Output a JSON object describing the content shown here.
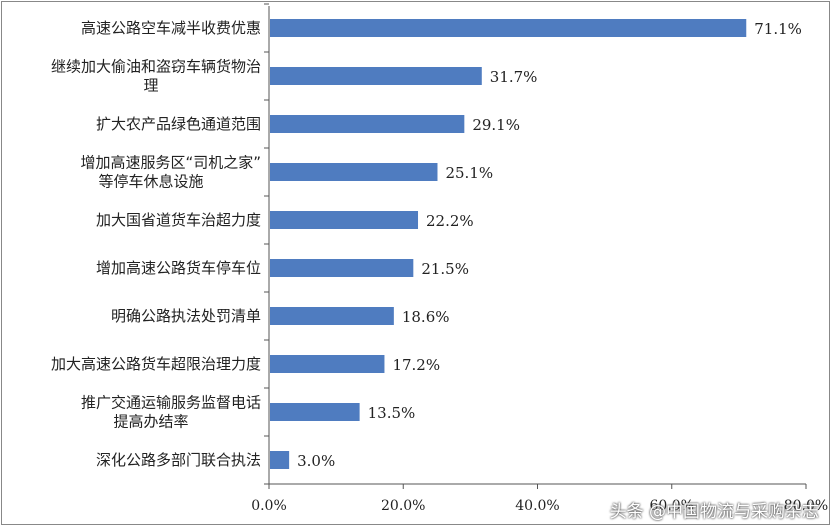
{
  "chart_data": {
    "type": "bar",
    "orientation": "horizontal",
    "categories": [
      [
        "高速公路空车减半收费优惠"
      ],
      [
        "继续加大偷油和盗窃车辆货物治",
        "理"
      ],
      [
        "扩大农产品绿色通道范围"
      ],
      [
        "增加高速服务区“司机之家”",
        "等停车休息设施"
      ],
      [
        "加大国省道货车治超力度"
      ],
      [
        "增加高速公路货车停车位"
      ],
      [
        "明确公路执法处罚清单"
      ],
      [
        "加大高速公路货车超限治理力度"
      ],
      [
        "推广交通运输服务监督电话",
        "提高办结率"
      ],
      [
        "深化公路多部门联合执法"
      ]
    ],
    "values": [
      71.1,
      31.7,
      29.1,
      25.1,
      22.2,
      21.5,
      18.6,
      17.2,
      13.5,
      3.0
    ],
    "value_labels": [
      "71.1%",
      "31.7%",
      "29.1%",
      "25.1%",
      "22.2%",
      "21.5%",
      "18.6%",
      "17.2%",
      "13.5%",
      "3.0%"
    ],
    "x_ticks": [
      "0.0%",
      "20.0%",
      "40.0%",
      "60.0%",
      "80.0%"
    ],
    "xlim": [
      0,
      80
    ],
    "bar_color": "#4f7cc0",
    "grid": false,
    "title": "",
    "xlabel": "",
    "ylabel": ""
  },
  "watermark": "头条 @中国物流与采购杂志"
}
